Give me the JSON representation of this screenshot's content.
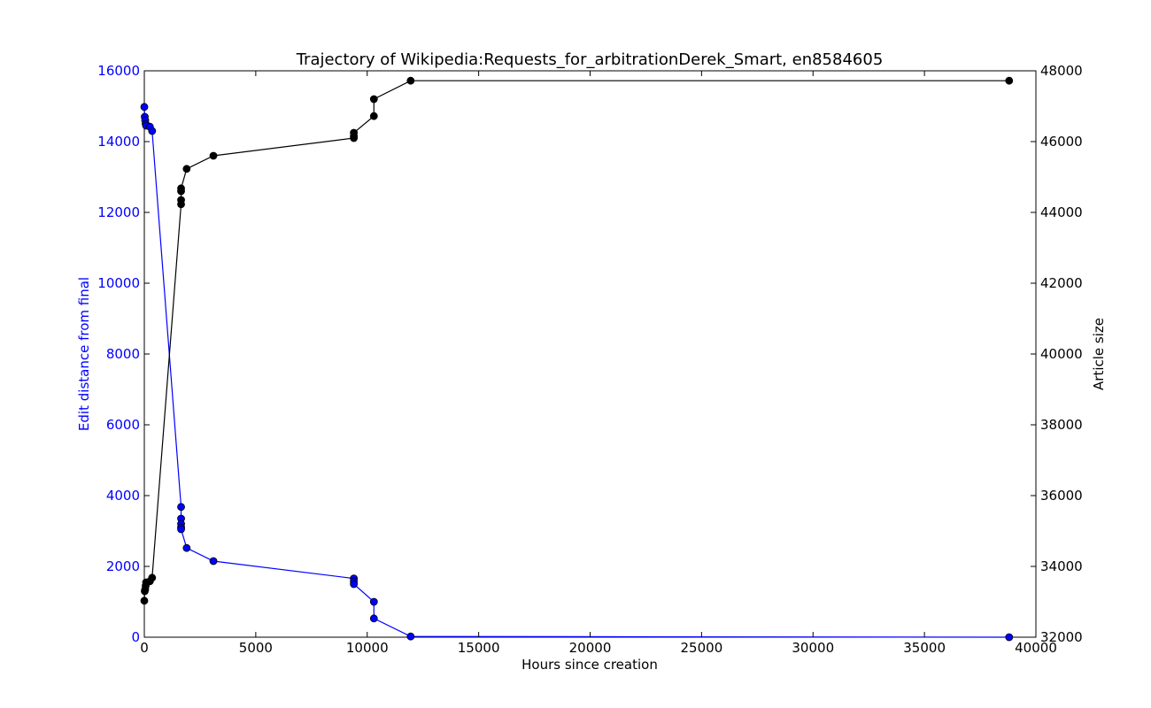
{
  "chart_data": {
    "type": "line",
    "title": "Trajectory of Wikipedia:Requests_for_arbitrationDerek_Smart, en8584605",
    "xlabel": "Hours since creation",
    "ylabel_left": "Edit distance from final",
    "ylabel_right": "Article size",
    "xlim": [
      0,
      40000
    ],
    "ylim_left": [
      0,
      16000
    ],
    "ylim_right": [
      32000,
      48000
    ],
    "x_ticks": [
      0,
      5000,
      10000,
      15000,
      20000,
      25000,
      30000,
      35000,
      40000
    ],
    "y_ticks_left": [
      0,
      2000,
      4000,
      6000,
      8000,
      10000,
      12000,
      14000,
      16000
    ],
    "y_ticks_right": [
      32000,
      34000,
      36000,
      38000,
      40000,
      42000,
      44000,
      46000,
      48000
    ],
    "grid": false,
    "colors": {
      "edit_distance": "#0000ff",
      "article_size": "#000000",
      "axis": "#000000"
    },
    "series": [
      {
        "axis": "left",
        "color": "#0000ff",
        "points": [
          [
            0,
            14980
          ],
          [
            20,
            14700
          ],
          [
            40,
            14600
          ],
          [
            60,
            14500
          ],
          [
            80,
            14450
          ],
          [
            250,
            14420
          ],
          [
            350,
            14300
          ],
          [
            1650,
            3680
          ],
          [
            1650,
            3350
          ],
          [
            1650,
            3200
          ],
          [
            1650,
            3100
          ],
          [
            1650,
            3050
          ],
          [
            1900,
            2520
          ],
          [
            3100,
            2150
          ],
          [
            9400,
            1660
          ],
          [
            9400,
            1580
          ],
          [
            9400,
            1500
          ],
          [
            10300,
            1000
          ],
          [
            10300,
            530
          ],
          [
            11950,
            20
          ],
          [
            38800,
            0
          ]
        ]
      },
      {
        "axis": "right",
        "color": "#000000",
        "points": [
          [
            0,
            33030
          ],
          [
            20,
            33300
          ],
          [
            40,
            33350
          ],
          [
            60,
            33450
          ],
          [
            80,
            33550
          ],
          [
            250,
            33580
          ],
          [
            350,
            33680
          ],
          [
            1650,
            44230
          ],
          [
            1650,
            44350
          ],
          [
            1650,
            44600
          ],
          [
            1650,
            44680
          ],
          [
            1900,
            45230
          ],
          [
            3100,
            45600
          ],
          [
            9400,
            46100
          ],
          [
            9400,
            46150
          ],
          [
            9400,
            46250
          ],
          [
            10300,
            46720
          ],
          [
            10300,
            47200
          ],
          [
            11950,
            47720
          ],
          [
            38800,
            47720
          ]
        ]
      }
    ]
  }
}
